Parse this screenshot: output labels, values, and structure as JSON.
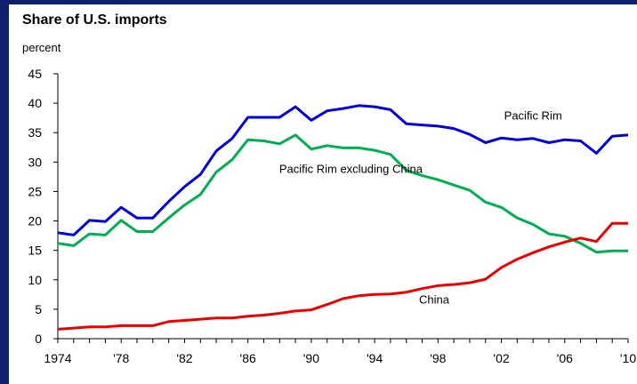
{
  "chart_data": {
    "type": "line",
    "title": "Share of U.S. imports",
    "ylabel": "percent",
    "xlabel": "",
    "xlim": [
      1974,
      2010
    ],
    "ylim": [
      0,
      45
    ],
    "yticks": [
      0,
      5,
      10,
      15,
      20,
      25,
      30,
      35,
      40,
      45
    ],
    "xticks": [
      {
        "value": 1974,
        "label": "1974"
      },
      {
        "value": 1978,
        "label": "'78"
      },
      {
        "value": 1982,
        "label": "'82"
      },
      {
        "value": 1986,
        "label": "'86"
      },
      {
        "value": 1990,
        "label": "'90"
      },
      {
        "value": 1994,
        "label": "'94"
      },
      {
        "value": 1998,
        "label": "'98"
      },
      {
        "value": 2002,
        "label": "'02"
      },
      {
        "value": 2006,
        "label": "'06"
      },
      {
        "value": 2010,
        "label": "'10"
      }
    ],
    "grid": false,
    "legend": "none",
    "x": [
      1974,
      1975,
      1976,
      1977,
      1978,
      1979,
      1980,
      1981,
      1982,
      1983,
      1984,
      1985,
      1986,
      1987,
      1988,
      1989,
      1990,
      1991,
      1992,
      1993,
      1994,
      1995,
      1996,
      1997,
      1998,
      1999,
      2000,
      2001,
      2002,
      2003,
      2004,
      2005,
      2006,
      2007,
      2008,
      2009,
      2010
    ],
    "series": [
      {
        "name": "Pacific Rim",
        "color": "#0000e0",
        "values": [
          18.0,
          17.6,
          20.1,
          19.9,
          22.3,
          20.5,
          20.5,
          23.3,
          25.8,
          27.9,
          31.9,
          34.0,
          37.6,
          37.6,
          37.6,
          39.4,
          37.1,
          38.7,
          39.1,
          39.6,
          39.4,
          38.9,
          36.5,
          36.3,
          36.1,
          35.7,
          34.7,
          33.3,
          34.1,
          33.8,
          34.0,
          33.3,
          33.8,
          33.6,
          31.5,
          34.4,
          34.6
        ]
      },
      {
        "name": "Pacific Rim excluding China",
        "color": "#00b050",
        "values": [
          16.2,
          15.8,
          17.8,
          17.6,
          20.1,
          18.2,
          18.2,
          20.5,
          22.7,
          24.5,
          28.3,
          30.4,
          33.8,
          33.6,
          33.1,
          34.6,
          32.2,
          32.8,
          32.4,
          32.4,
          32.0,
          31.3,
          28.6,
          27.7,
          27.0,
          26.1,
          25.2,
          23.2,
          22.3,
          20.5,
          19.4,
          17.8,
          17.4,
          16.2,
          14.7,
          14.9,
          14.9
        ]
      },
      {
        "name": "China",
        "color": "#ee0000",
        "values": [
          1.6,
          1.8,
          2.0,
          2.0,
          2.2,
          2.2,
          2.2,
          2.9,
          3.1,
          3.3,
          3.5,
          3.5,
          3.8,
          4.0,
          4.3,
          4.7,
          4.9,
          5.8,
          6.8,
          7.3,
          7.5,
          7.6,
          7.9,
          8.5,
          9.0,
          9.2,
          9.5,
          10.1,
          12.1,
          13.5,
          14.6,
          15.6,
          16.4,
          17.1,
          16.5,
          19.6,
          19.6
        ]
      }
    ],
    "annotations": [
      {
        "text": "Pacific Rim",
        "series": 0
      },
      {
        "text": "Pacific Rim excluding China",
        "series": 1
      },
      {
        "text": "China",
        "series": 2
      }
    ]
  }
}
